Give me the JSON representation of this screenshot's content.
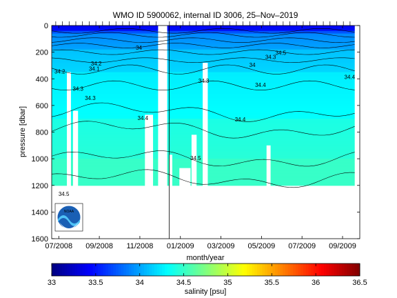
{
  "chart_data": {
    "type": "heatmap",
    "title": "WMO ID 5900062, internal ID 3006, 25–Nov–2019",
    "xlabel": "month/year",
    "ylabel": "pressure [dbar]",
    "x_ticks": [
      "07/2008",
      "09/2008",
      "11/2008",
      "01/2009",
      "03/2009",
      "05/2009",
      "07/2009",
      "09/2009"
    ],
    "y_ticks": [
      0,
      200,
      400,
      600,
      800,
      1000,
      1200,
      1400,
      1600
    ],
    "ylim": [
      1600,
      0
    ],
    "xlim": [
      "06/2008",
      "09/2009"
    ],
    "colorbar": {
      "label": "salinity [psu]",
      "ticks": [
        33,
        33.5,
        34,
        34.5,
        35,
        35.5,
        36,
        36.5
      ],
      "range": [
        33,
        36.5
      ],
      "colormap": "jet"
    },
    "field": {
      "variable": "salinity",
      "max_pressure": 1200,
      "layers": [
        {
          "salinity": 33.6,
          "pressure_range": [
            0,
            60
          ]
        },
        {
          "salinity": 33.9,
          "pressure_range": [
            60,
            180
          ]
        },
        {
          "salinity": 34.1,
          "pressure_range": [
            180,
            350
          ]
        },
        {
          "salinity": 34.25,
          "pressure_range": [
            350,
            700
          ]
        },
        {
          "salinity": 34.4,
          "pressure_range": [
            700,
            1000
          ]
        },
        {
          "salinity": 34.5,
          "pressure_range": [
            1000,
            1200
          ]
        }
      ]
    },
    "contour_labels": [
      {
        "text": "34.2",
        "month": 0.4,
        "pressure": 360
      },
      {
        "text": "34.3",
        "month": 1.3,
        "pressure": 490
      },
      {
        "text": "34.3",
        "month": 1.9,
        "pressure": 560
      },
      {
        "text": "34.2",
        "month": 2.2,
        "pressure": 300
      },
      {
        "text": "34.1",
        "month": 2.1,
        "pressure": 340
      },
      {
        "text": "34.4",
        "month": 4.5,
        "pressure": 710
      },
      {
        "text": "34.5",
        "month": 0.6,
        "pressure": 1280
      },
      {
        "text": "34.5",
        "month": 7.1,
        "pressure": 1010
      },
      {
        "text": "34.3",
        "month": 7.5,
        "pressure": 430
      },
      {
        "text": "34.4",
        "month": 9.3,
        "pressure": 720
      },
      {
        "text": "34.4",
        "month": 10.3,
        "pressure": 460
      },
      {
        "text": "34.4",
        "month": 14.7,
        "pressure": 400
      },
      {
        "text": "34",
        "month": 9.9,
        "pressure": 310
      },
      {
        "text": "34.5",
        "month": 11.3,
        "pressure": 220
      },
      {
        "text": "34.3",
        "month": 10.8,
        "pressure": 250
      },
      {
        "text": "34",
        "month": 4.3,
        "pressure": 180
      }
    ],
    "gaps": [
      {
        "month_range": [
          0.75,
          0.95
        ],
        "pressure_range": [
          350,
          1600
        ]
      },
      {
        "month_range": [
          1.05,
          1.3
        ],
        "pressure_range": [
          640,
          1600
        ]
      },
      {
        "month_range": [
          4.6,
          5.0
        ],
        "pressure_range": [
          670,
          1600
        ]
      },
      {
        "month_range": [
          5.25,
          5.7
        ],
        "pressure_range": [
          0,
          1600
        ]
      },
      {
        "month_range": [
          5.8,
          5.95
        ],
        "pressure_range": [
          970,
          1600
        ]
      },
      {
        "month_range": [
          6.3,
          6.85
        ],
        "pressure_range": [
          1070,
          1600
        ]
      },
      {
        "month_range": [
          6.9,
          7.15
        ],
        "pressure_range": [
          820,
          1600
        ]
      },
      {
        "month_range": [
          7.45,
          7.7
        ],
        "pressure_range": [
          280,
          1600
        ]
      },
      {
        "month_range": [
          10.6,
          10.8
        ],
        "pressure_range": [
          900,
          1600
        ]
      }
    ],
    "data_end_month": 14.95,
    "vertical_marker_month": 5.8
  },
  "logo": {
    "text": "NOAA"
  }
}
